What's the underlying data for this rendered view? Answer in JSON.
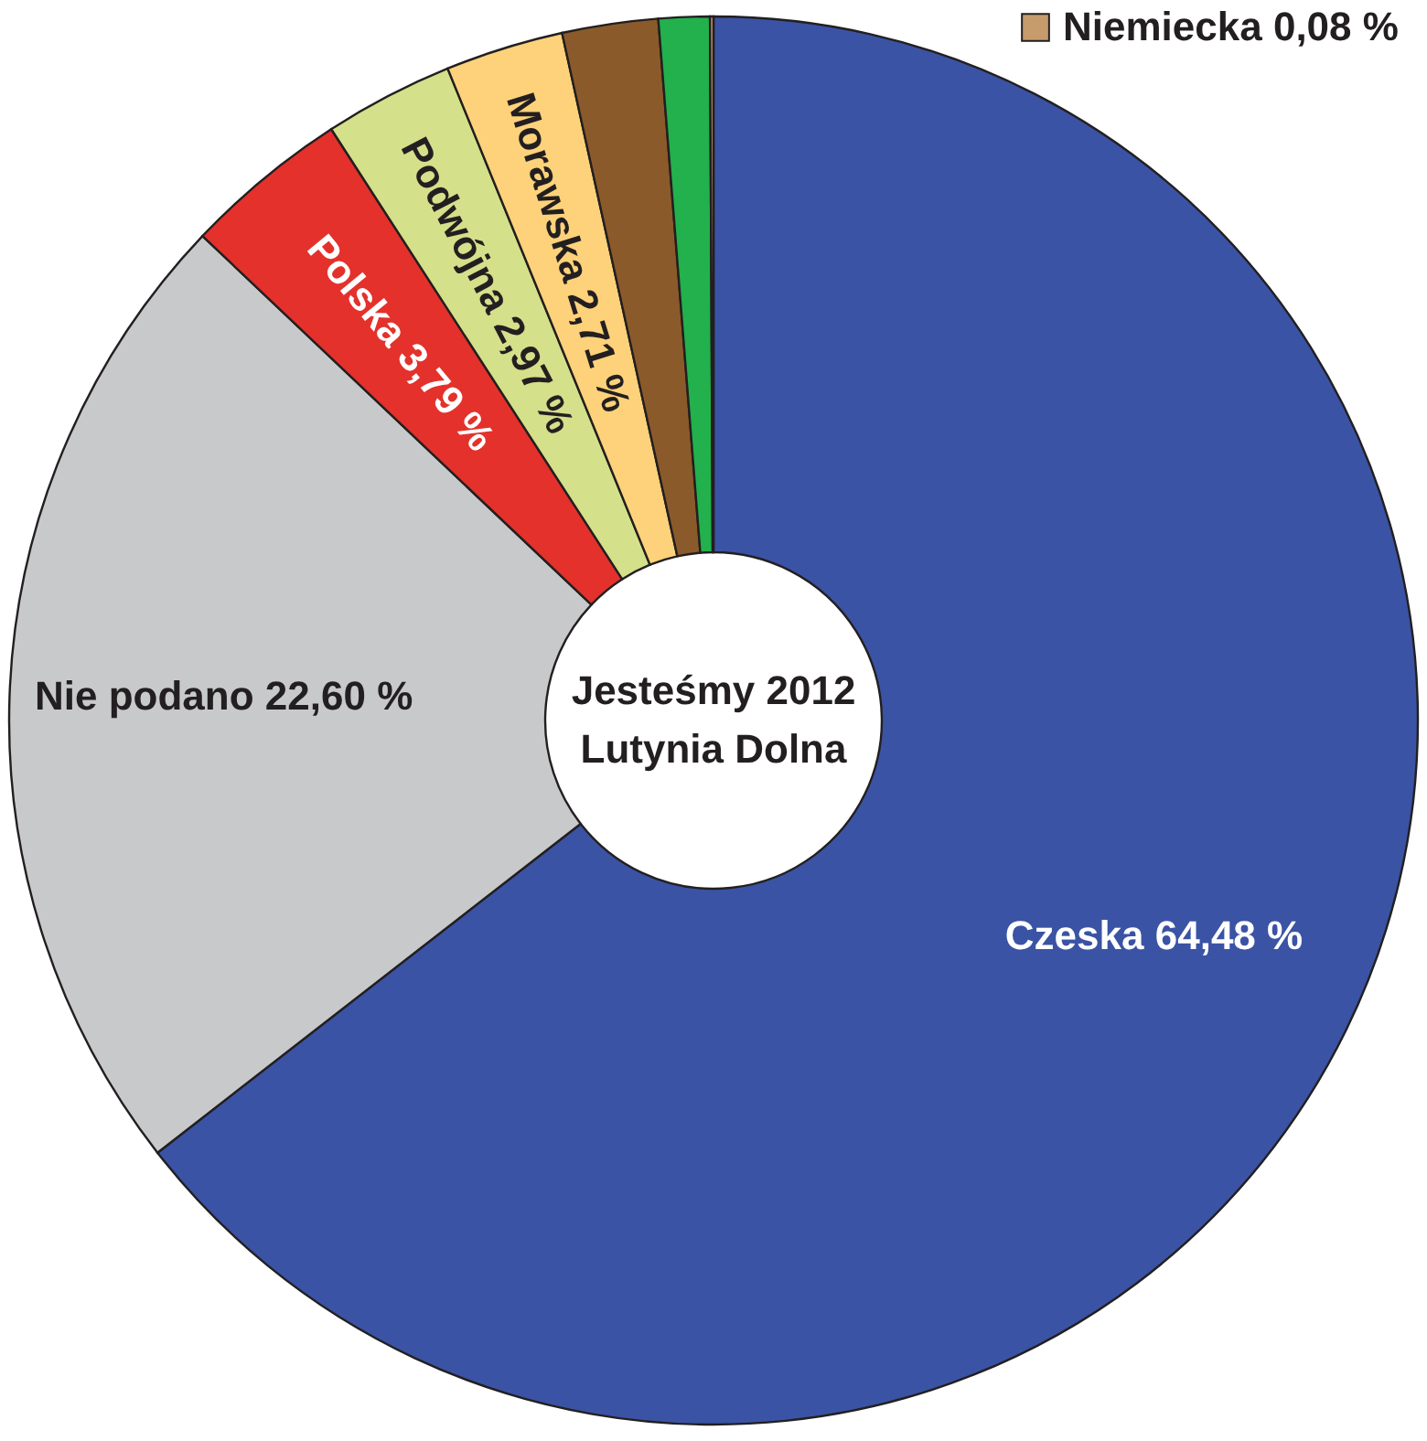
{
  "chart_data": {
    "type": "donut",
    "title": "Jesteśmy 2012",
    "subtitle": "Lutynia Dolna",
    "categories": [
      "Czeska",
      "Nie podano",
      "Polska",
      "Podwójna",
      "Morawska",
      null,
      null,
      "Niemiecka"
    ],
    "values": [
      64.48,
      22.6,
      3.79,
      2.97,
      2.71,
      2.2,
      1.17,
      0.08
    ],
    "value_labels": [
      "64,48 %",
      "22,60 %",
      "3,79 %",
      "2,97 %",
      "2,71 %",
      null,
      null,
      "0,08 %"
    ],
    "colors": [
      "#3a53a4",
      "#c8c9cb",
      "#e4312b",
      "#d4e08a",
      "#fdd27a",
      "#8b5a2b",
      "#22b14c",
      "#c69c6d"
    ]
  }
}
